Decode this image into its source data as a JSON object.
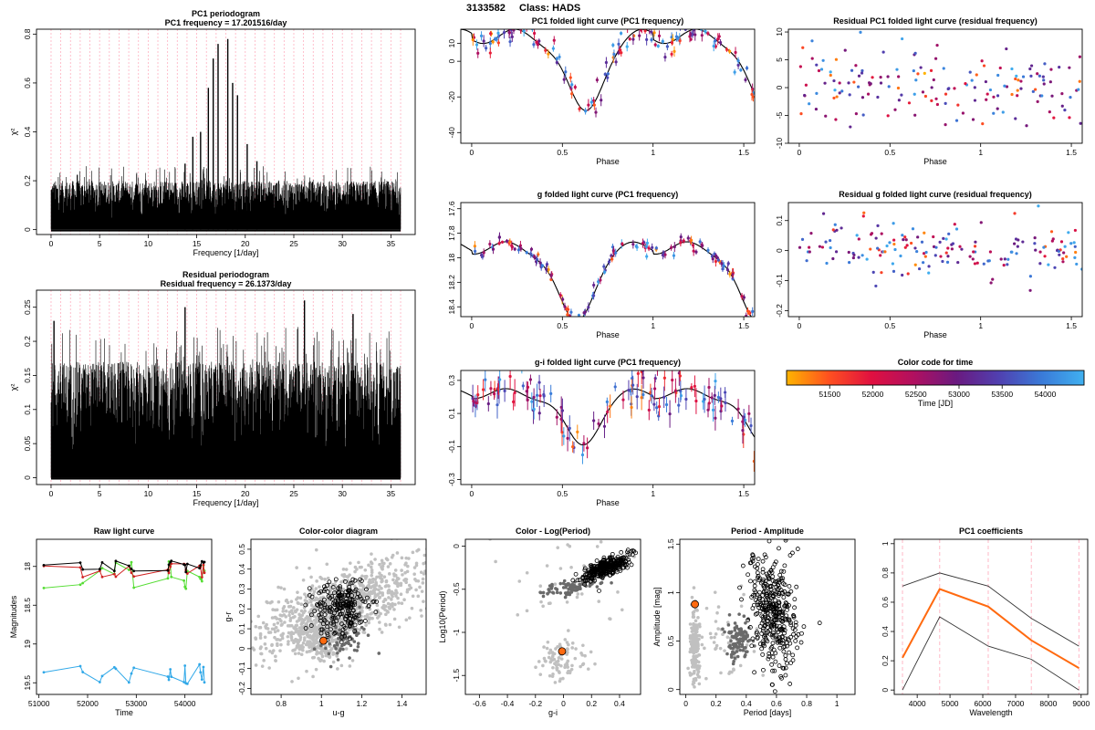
{
  "figure": {
    "star_id": "3133582",
    "class_label": "Class: HADS"
  },
  "colors": {
    "line": "#000000",
    "highlight": "#ff6a10",
    "ref_gray": "#c0c0c0",
    "mid_gray": "#6a6a6a",
    "grid_pink": "#ffb0c0",
    "colorbar_stops": [
      "#ffb400",
      "#ff5020",
      "#e01040",
      "#b01060",
      "#6a1a80",
      "#5040b0",
      "#3a7ad8",
      "#40b0f0"
    ]
  },
  "chart_data": [
    {
      "id": "pc1_periodogram",
      "type": "line",
      "title": "PC1 periodogram",
      "subtitle": "PC1 frequency = 17.201516/day",
      "xlabel": "Frequency [1/day]",
      "ylabel": "χ²",
      "xlim": [
        -1.5,
        37.5
      ],
      "ylim": [
        -0.02,
        0.82
      ],
      "xticks": [
        0,
        5,
        10,
        15,
        20,
        25,
        30,
        35
      ],
      "yticks": [
        0.0,
        0.2,
        0.4,
        0.6,
        0.8
      ],
      "grid_vlines_every": 1,
      "envelope_base": 0.2,
      "peaks": [
        {
          "x": 14.6,
          "y": 0.38
        },
        {
          "x": 15.4,
          "y": 0.4
        },
        {
          "x": 16.2,
          "y": 0.58
        },
        {
          "x": 17.2,
          "y": 0.76
        },
        {
          "x": 18.2,
          "y": 0.78
        },
        {
          "x": 19.2,
          "y": 0.55
        },
        {
          "x": 20.2,
          "y": 0.35
        },
        {
          "x": 21.2,
          "y": 0.28
        },
        {
          "x": 13.8,
          "y": 0.27
        },
        {
          "x": 18.7,
          "y": 0.6
        },
        {
          "x": 16.7,
          "y": 0.7
        }
      ]
    },
    {
      "id": "residual_periodogram",
      "type": "line",
      "title": "Residual periodogram",
      "subtitle": "Residual frequency = 26.1373/day",
      "xlabel": "Frequency [1/day]",
      "ylabel": "χ²",
      "xlim": [
        -1.5,
        37.5
      ],
      "ylim": [
        -0.01,
        0.275
      ],
      "xticks": [
        0,
        5,
        10,
        15,
        20,
        25,
        30,
        35
      ],
      "yticks": [
        0.0,
        0.05,
        0.1,
        0.15,
        0.2,
        0.25
      ],
      "grid_vlines_every": 1,
      "envelope_base": 0.17,
      "peaks": [
        {
          "x": 26.1,
          "y": 0.26
        },
        {
          "x": 0.3,
          "y": 0.23
        },
        {
          "x": 13.8,
          "y": 0.25
        },
        {
          "x": 31.1,
          "y": 0.24
        }
      ]
    },
    {
      "id": "pc1_folded",
      "type": "scatter",
      "title": "PC1 folded light curve (PC1 frequency)",
      "xlabel": "Phase",
      "ylabel": "",
      "xlim": [
        -0.06,
        1.56
      ],
      "ylim": [
        -46,
        18
      ],
      "xticks": [
        0.0,
        0.5,
        1.0,
        1.5
      ],
      "yticks": [
        -40,
        -20,
        0,
        10
      ],
      "model": {
        "mean": 0,
        "amp": 28,
        "phase_min": 0.62,
        "sharpness": 3.5,
        "wiggle": 4,
        "wiggle_period": 0.35,
        "wiggle_phase": 0.15
      },
      "scatter": 3.5,
      "errbar": 2.5,
      "n_points": 90
    },
    {
      "id": "residual_pc1_folded",
      "type": "scatter",
      "title": "Residual PC1 folded light curve (residual frequency)",
      "xlabel": "Phase",
      "ylabel": "",
      "xlim": [
        -0.06,
        1.56
      ],
      "ylim": [
        -10,
        10.5
      ],
      "xticks": [
        0.0,
        0.5,
        1.0,
        1.5
      ],
      "yticks": [
        -10,
        -5,
        0,
        5,
        10
      ],
      "center": 0,
      "scatter": 3.5,
      "n_points": 100
    },
    {
      "id": "g_folded",
      "type": "scatter",
      "title": "g folded light curve (PC1 frequency)",
      "xlabel": "Phase",
      "ylabel": "",
      "xlim": [
        -0.06,
        1.56
      ],
      "ylim": [
        18.48,
        17.55
      ],
      "xticks": [
        0.0,
        0.5,
        1.0,
        1.5
      ],
      "yticks": [
        17.6,
        17.8,
        18.0,
        18.2,
        18.4
      ],
      "model": {
        "mean": 18.12,
        "amp": -0.4,
        "phase_min": 0.57,
        "sharpness": 3.5,
        "wiggle": -0.05,
        "wiggle_period": 0.35,
        "wiggle_phase": 0.1
      },
      "scatter": 0.03,
      "errbar": 0.03,
      "n_points": 90
    },
    {
      "id": "residual_g_folded",
      "type": "scatter",
      "title": "Residual g folded light curve (residual frequency)",
      "xlabel": "Phase",
      "ylabel": "",
      "xlim": [
        -0.06,
        1.56
      ],
      "ylim": [
        -0.22,
        0.16
      ],
      "xticks": [
        0.0,
        0.5,
        1.0,
        1.5
      ],
      "yticks": [
        -0.2,
        -0.1,
        0.0,
        0.1
      ],
      "center": 0,
      "scatter": 0.05,
      "n_points": 110
    },
    {
      "id": "gi_folded",
      "type": "scatter",
      "title": "g-i folded light curve (PC1 frequency)",
      "xlabel": "Phase",
      "ylabel": "",
      "xlim": [
        -0.06,
        1.56
      ],
      "ylim": [
        -0.33,
        0.36
      ],
      "xticks": [
        0.0,
        0.5,
        1.0,
        1.5
      ],
      "yticks": [
        -0.3,
        -0.1,
        0.1,
        0.3
      ],
      "model": {
        "mean": 0.12,
        "amp": 0.2,
        "phase_min": 0.6,
        "sharpness": 3.5,
        "wiggle": 0.03,
        "wiggle_period": 0.35,
        "wiggle_phase": 0.1
      },
      "scatter": 0.06,
      "errbar": 0.06,
      "n_points": 80
    },
    {
      "id": "colorbar",
      "type": "heatmap",
      "title": "Color code for time",
      "xlabel": "Time [JD]",
      "xlim": [
        51000,
        54450
      ],
      "xticks": [
        51500,
        52000,
        52500,
        53000,
        53500,
        54000
      ]
    },
    {
      "id": "raw_light_curve",
      "type": "line",
      "title": "Raw light curve",
      "xlabel": "Time",
      "ylabel": "Magnitudes",
      "xlim": [
        50950,
        54550
      ],
      "ylim": [
        19.65,
        17.65
      ],
      "xticks": [
        51000,
        52000,
        53000,
        54000
      ],
      "yticks": [
        18.0,
        18.5,
        19.0,
        19.5
      ],
      "epochs": [
        51100,
        51850,
        51900,
        52250,
        52300,
        52550,
        52580,
        52850,
        52900,
        52950,
        53650,
        53670,
        53700,
        53720,
        53980,
        54000,
        54020,
        54050,
        54300,
        54320,
        54350,
        54380,
        54400
      ],
      "series": [
        {
          "name": "g (green)",
          "color": "#55dd33",
          "base": 18.08,
          "spread": 0.18
        },
        {
          "name": "r (red)",
          "color": "#d02020",
          "base": 18.02,
          "spread": 0.1
        },
        {
          "name": "i (black)",
          "color": "#000000",
          "base": 17.98,
          "spread": 0.08
        },
        {
          "name": "u (blue)",
          "color": "#30a8e8",
          "base": 19.35,
          "spread": 0.15
        }
      ]
    },
    {
      "id": "color_color",
      "type": "scatter",
      "title": "Color-color diagram",
      "xlabel": "u-g",
      "ylabel": "g-r",
      "xlim": [
        0.65,
        1.52
      ],
      "ylim": [
        -0.23,
        0.55
      ],
      "xticks": [
        0.8,
        1.0,
        1.2,
        1.4
      ],
      "yticks": [
        -0.2,
        -0.1,
        0.0,
        0.1,
        0.2,
        0.3,
        0.4,
        0.5
      ],
      "highlight": {
        "x": 1.01,
        "y": 0.04
      },
      "clusters": [
        {
          "style": "ref",
          "n": 900,
          "cx": 1.1,
          "cy": 0.22,
          "sx": 0.22,
          "sy": 0.12,
          "corr": 0.7
        },
        {
          "style": "ref",
          "n": 250,
          "cx": 1.0,
          "cy": 0.05,
          "sx": 0.06,
          "sy": 0.07,
          "corr": 0.0
        },
        {
          "style": "open",
          "n": 220,
          "cx": 1.1,
          "cy": 0.2,
          "sx": 0.07,
          "sy": 0.07,
          "corr": 0.2
        },
        {
          "style": "dark",
          "n": 70,
          "cx": 1.12,
          "cy": 0.05,
          "sx": 0.06,
          "sy": 0.06,
          "corr": 0.2
        }
      ]
    },
    {
      "id": "color_logperiod",
      "type": "scatter",
      "title": "Color - Log(Period)",
      "xlabel": "g-i",
      "ylabel": "Log10(Period)",
      "xlim": [
        -0.7,
        0.55
      ],
      "ylim": [
        -1.72,
        0.08
      ],
      "xticks": [
        -0.6,
        -0.4,
        -0.2,
        0.0,
        0.2,
        0.4
      ],
      "yticks": [
        -1.5,
        -1.0,
        -0.5,
        0.0
      ],
      "highlight": {
        "x": -0.01,
        "y": -1.22
      },
      "clusters": [
        {
          "style": "ref",
          "n": 90,
          "cx": 0.0,
          "cy": -1.3,
          "sx": 0.08,
          "sy": 0.12,
          "corr": 0.0
        },
        {
          "style": "ref",
          "n": 40,
          "cx": 0.05,
          "cy": -0.4,
          "sx": 0.3,
          "sy": 0.4,
          "corr": 0.0
        },
        {
          "style": "dark",
          "n": 90,
          "cx": 0.05,
          "cy": -0.48,
          "sx": 0.1,
          "sy": 0.05,
          "corr": 0.6
        },
        {
          "style": "open",
          "n": 300,
          "cx": 0.3,
          "cy": -0.25,
          "sx": 0.08,
          "sy": 0.07,
          "corr": 0.7
        }
      ]
    },
    {
      "id": "period_amplitude",
      "type": "scatter",
      "title": "Period - Amplitude",
      "xlabel": "Period [days]",
      "ylabel": "Amplitude [mag]",
      "xlim": [
        -0.04,
        1.12
      ],
      "ylim": [
        -0.05,
        1.55
      ],
      "xticks": [
        0.0,
        0.2,
        0.4,
        0.6,
        0.8,
        1.0
      ],
      "yticks": [
        0.0,
        0.5,
        1.0,
        1.5
      ],
      "highlight": {
        "x": 0.06,
        "y": 0.88
      },
      "clusters": [
        {
          "style": "ref",
          "n": 160,
          "cx": 0.06,
          "cy": 0.45,
          "sx": 0.015,
          "sy": 0.2,
          "corr": 0.0
        },
        {
          "style": "ref",
          "n": 60,
          "cx": 0.25,
          "cy": 0.5,
          "sx": 0.12,
          "sy": 0.2,
          "corr": 0.0
        },
        {
          "style": "dark",
          "n": 110,
          "cx": 0.35,
          "cy": 0.52,
          "sx": 0.04,
          "sy": 0.1,
          "corr": 0.0
        },
        {
          "style": "open",
          "n": 380,
          "cx": 0.58,
          "cy": 0.8,
          "sx": 0.08,
          "sy": 0.3,
          "corr": -0.3
        }
      ]
    },
    {
      "id": "pc1_coefficients",
      "type": "line",
      "title": "PC1 coefficients",
      "xlabel": "Wavelength",
      "ylabel": "",
      "xlim": [
        3300,
        9200
      ],
      "ylim": [
        -0.03,
        1.03
      ],
      "xticks": [
        4000,
        5000,
        6000,
        7000,
        8000,
        9000
      ],
      "yticks": [
        0.0,
        0.2,
        0.4,
        0.6,
        0.8,
        1.0
      ],
      "x": [
        3551,
        4686,
        6166,
        7480,
        8932
      ],
      "series": [
        {
          "name": "upper",
          "values": [
            0.71,
            0.8,
            0.71,
            0.49,
            0.3
          ]
        },
        {
          "name": "PC1",
          "values": [
            0.22,
            0.69,
            0.57,
            0.34,
            0.15
          ]
        },
        {
          "name": "lower",
          "values": [
            0.0,
            0.5,
            0.3,
            0.21,
            0.0
          ]
        }
      ]
    }
  ]
}
